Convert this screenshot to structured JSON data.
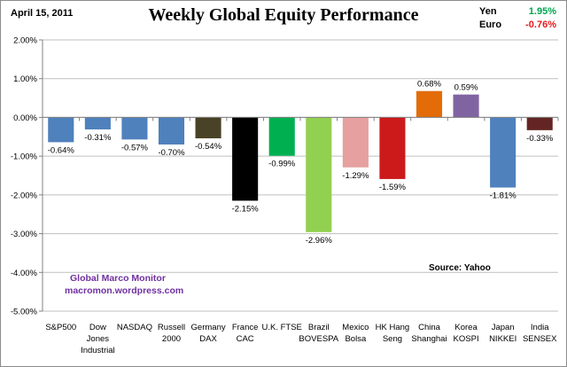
{
  "header": {
    "date": "April 15, 2011",
    "title": "Weekly Global Equity Performance"
  },
  "fx": {
    "yen_label": "Yen",
    "yen_value": "1.95%",
    "yen_color": "#00a651",
    "euro_label": "Euro",
    "euro_value": "-0.76%",
    "euro_color": "#e31a1c"
  },
  "footer": {
    "watermark_line1": "Global Marco Monitor",
    "watermark_line2": "macromon.wordpress.com",
    "source": "Source:  Yahoo"
  },
  "chart_data": {
    "type": "bar",
    "title": "Weekly Global Equity Performance",
    "xlabel": "",
    "ylabel": "",
    "ylim": [
      -5,
      2
    ],
    "yticks": [
      2,
      1,
      0,
      -1,
      -2,
      -3,
      -4,
      -5
    ],
    "ytick_labels": [
      "2.00%",
      "1.00%",
      "0.00%",
      "-1.00%",
      "-2.00%",
      "-3.00%",
      "-4.00%",
      "-5.00%"
    ],
    "grid": true,
    "categories": [
      [
        "S&P500"
      ],
      [
        "Dow",
        "Jones",
        "Industrial"
      ],
      [
        "NASDAQ"
      ],
      [
        "Russell",
        "2000"
      ],
      [
        "Germany",
        "DAX"
      ],
      [
        "France",
        "CAC"
      ],
      [
        "U.K. FTSE"
      ],
      [
        "Brazil",
        "BOVESPA"
      ],
      [
        "Mexico",
        "Bolsa"
      ],
      [
        "HK Hang",
        "Seng"
      ],
      [
        "China",
        "Shanghai"
      ],
      [
        "Korea",
        "KOSPI"
      ],
      [
        "Japan",
        "NIKKEI"
      ],
      [
        "India",
        "SENSEX"
      ]
    ],
    "values": [
      -0.64,
      -0.31,
      -0.57,
      -0.7,
      -0.54,
      -2.15,
      -0.99,
      -2.96,
      -1.29,
      -1.59,
      0.68,
      0.59,
      -1.81,
      -0.33
    ],
    "value_labels": [
      "-0.64%",
      "-0.31%",
      "-0.57%",
      "-0.70%",
      "-0.54%",
      "-2.15%",
      "-0.99%",
      "-2.96%",
      "-1.29%",
      "-1.59%",
      "0.68%",
      "0.59%",
      "-1.81%",
      "-0.33%"
    ],
    "colors": [
      "#4f81bd",
      "#4f81bd",
      "#4f81bd",
      "#4f81bd",
      "#4a4226",
      "#000000",
      "#00b050",
      "#92d050",
      "#e6a0a0",
      "#cc1a1a",
      "#e36c09",
      "#8064a2",
      "#4f81bd",
      "#632523"
    ]
  }
}
